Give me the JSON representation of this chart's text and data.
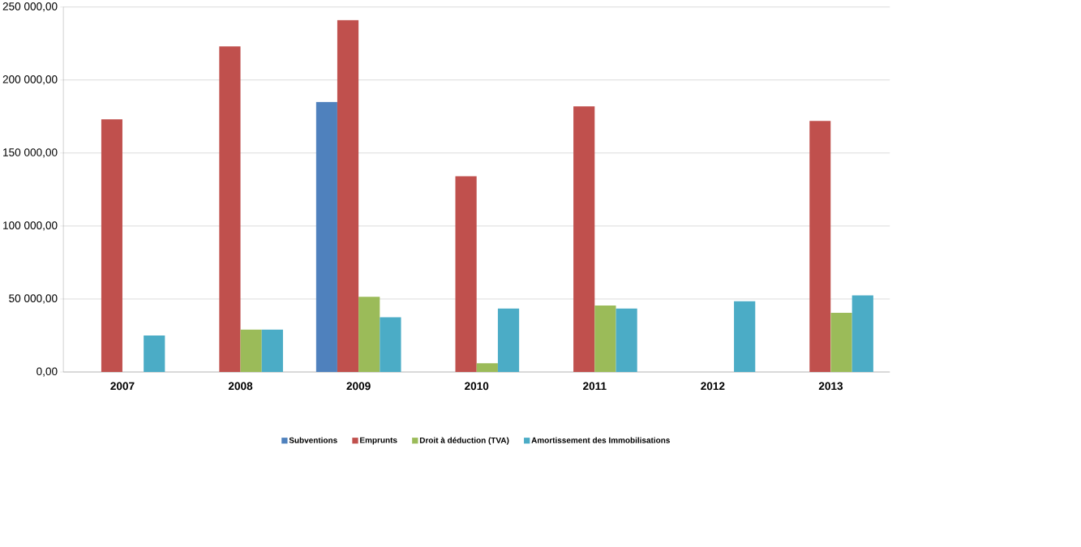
{
  "chart_data": {
    "type": "bar",
    "categories": [
      "2007",
      "2008",
      "2009",
      "2010",
      "2011",
      "2012",
      "2013"
    ],
    "series": [
      {
        "name": "Subventions",
        "color": "#4f81bd",
        "values": [
          null,
          null,
          185000,
          null,
          null,
          null,
          null
        ]
      },
      {
        "name": "Emprunts",
        "color": "#c0504d",
        "values": [
          173000,
          223000,
          241000,
          134000,
          182000,
          null,
          172000
        ]
      },
      {
        "name": "Droit à déduction (TVA)",
        "color": "#9bbb59",
        "values": [
          null,
          29000,
          51500,
          6000,
          45500,
          null,
          40500
        ]
      },
      {
        "name": "Amortissement des Immobilisations",
        "color": "#4bacc6",
        "values": [
          25000,
          29000,
          37500,
          43500,
          43500,
          48500,
          52500
        ]
      }
    ],
    "ylim": [
      0,
      250000
    ],
    "yticks": [
      {
        "value": 0,
        "label": "0,00"
      },
      {
        "value": 50000,
        "label": "50 000,00"
      },
      {
        "value": 100000,
        "label": "100 000,00"
      },
      {
        "value": 150000,
        "label": "150 000,00"
      },
      {
        "value": 200000,
        "label": "200 000,00"
      },
      {
        "value": 250000,
        "label": "250 000,00"
      }
    ],
    "grid": "y",
    "legend": "bottom"
  }
}
